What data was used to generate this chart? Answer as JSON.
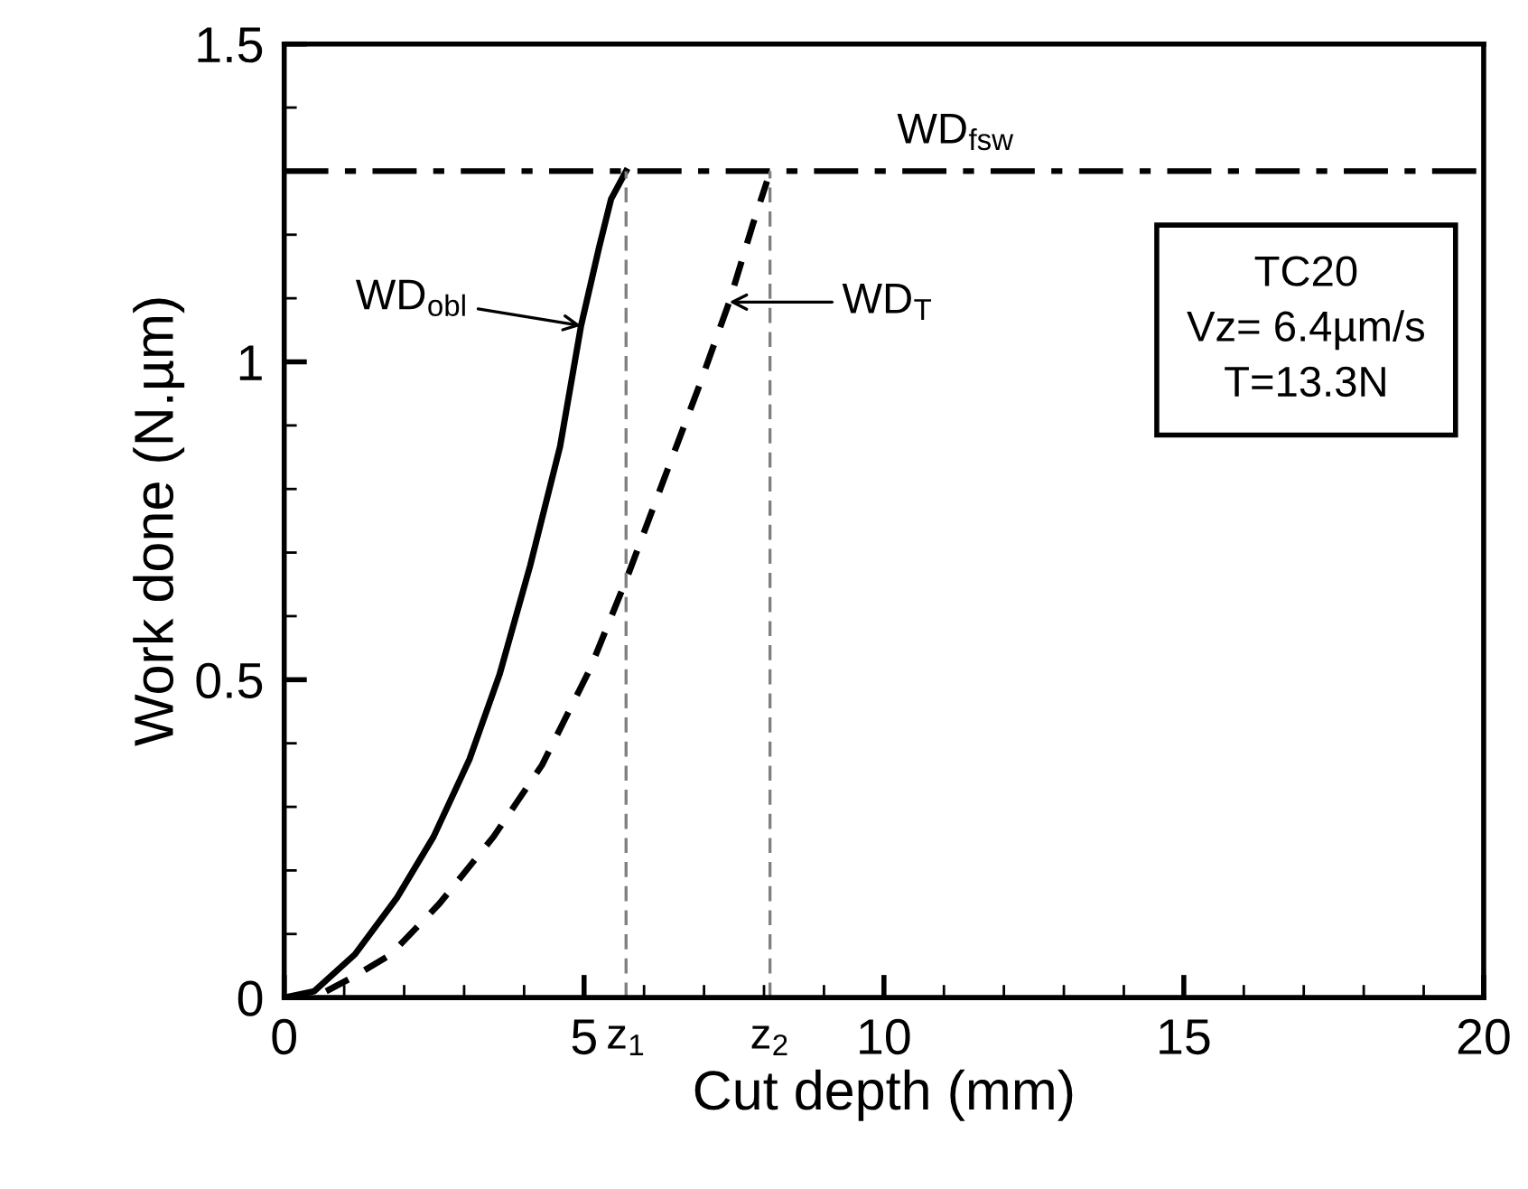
{
  "chart_data": {
    "type": "line",
    "xlabel": "Cut depth (mm)",
    "ylabel": "Work done (N.µm)",
    "xlim": [
      0,
      20
    ],
    "ylim": [
      0,
      1.5
    ],
    "xticks": [
      0,
      {
        "value": 1,
        "label": null
      },
      {
        "value": 2,
        "label": null
      },
      {
        "value": 3,
        "label": null
      },
      {
        "value": 4,
        "label": null
      },
      5,
      {
        "value": 6,
        "label": null
      },
      {
        "value": 7,
        "label": null
      },
      {
        "value": 8,
        "label": null
      },
      {
        "value": 9,
        "label": null
      },
      10,
      {
        "value": 11,
        "label": null
      },
      {
        "value": 12,
        "label": null
      },
      {
        "value": 13,
        "label": null
      },
      {
        "value": 14,
        "label": null
      },
      15,
      {
        "value": 16,
        "label": null
      },
      {
        "value": 17,
        "label": null
      },
      {
        "value": 18,
        "label": null
      },
      {
        "value": 19,
        "label": null
      },
      20
    ],
    "yticks": [
      0,
      {
        "value": 0.1,
        "label": null
      },
      {
        "value": 0.2,
        "label": null
      },
      {
        "value": 0.3,
        "label": null
      },
      {
        "value": 0.4,
        "label": null
      },
      0.5,
      {
        "value": 0.6,
        "label": null
      },
      {
        "value": 0.7,
        "label": null
      },
      {
        "value": 0.8,
        "label": null
      },
      {
        "value": 0.9,
        "label": null
      },
      1,
      {
        "value": 1.1,
        "label": null
      },
      {
        "value": 1.2,
        "label": null
      },
      {
        "value": 1.3,
        "label": null
      },
      {
        "value": 1.4,
        "label": null
      },
      1.5
    ],
    "grid": false,
    "series": [
      {
        "color": "#000000",
        "line_style": "solid",
        "x": [
          0,
          0.5,
          1.18,
          1.88,
          2.49,
          3.09,
          3.59,
          4.1,
          4.6,
          4.95,
          5.25,
          5.45,
          5.7
        ],
        "values": [
          0,
          0.01,
          0.068,
          0.157,
          0.253,
          0.375,
          0.508,
          0.679,
          0.867,
          1.057,
          1.18,
          1.256,
          1.3
        ]
      },
      {
        "color": "#000000",
        "line_style": "dashed",
        "x": [
          0.7,
          1.2,
          1.78,
          2.59,
          3.49,
          4.3,
          5.1,
          5.71,
          6.31,
          6.92,
          7.42,
          7.82,
          8.05
        ],
        "values": [
          0.01,
          0.035,
          0.068,
          0.148,
          0.253,
          0.366,
          0.517,
          0.659,
          0.81,
          0.962,
          1.094,
          1.218,
          1.284
        ]
      }
    ],
    "ref_lines": [
      {
        "axis": "y",
        "value": 1.3,
        "label": "WD$_{fsw}$",
        "color": "#000000",
        "line_style": "dashdot"
      },
      {
        "axis": "x",
        "value": 5.7,
        "label": "z$_{1}$",
        "color": "#808080",
        "line_style": "dashed"
      },
      {
        "axis": "x",
        "value": 8.1,
        "label": "z$_{2}$",
        "color": "#808080",
        "line_style": "dashed"
      }
    ],
    "annotations": [
      {
        "text": "WD$_{obl}$",
        "x": 4.95,
        "y": 1.057
      },
      {
        "text": "WD$_{T}$",
        "x": 7.42,
        "y": 1.094
      },
      "TC20\nVz= 6.4µm/s\nT=13.3N"
    ]
  }
}
